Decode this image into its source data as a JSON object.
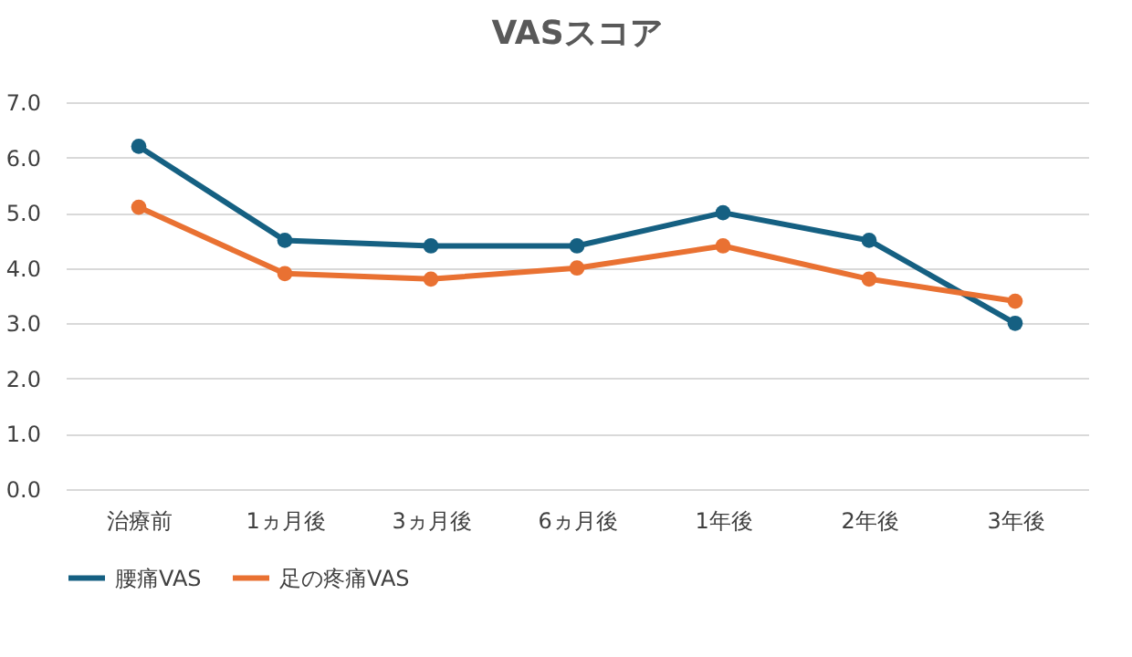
{
  "chart_data": {
    "type": "line",
    "title": "VASスコア",
    "categories": [
      "治療前",
      "1ヵ月後",
      "3ヵ月後",
      "6ヵ月後",
      "1年後",
      "2年後",
      "3年後"
    ],
    "series": [
      {
        "name": "腰痛VAS",
        "color": "#156082",
        "values": [
          6.2,
          4.5,
          4.4,
          4.4,
          5.0,
          4.5,
          3.0
        ]
      },
      {
        "name": "足の疼痛VAS",
        "color": "#e97132",
        "values": [
          5.1,
          3.9,
          3.8,
          4.0,
          4.4,
          3.8,
          3.4
        ]
      }
    ],
    "ylim": [
      0,
      7
    ],
    "yticks": [
      {
        "value": 0,
        "label": "0.0"
      },
      {
        "value": 1,
        "label": "1.0"
      },
      {
        "value": 2,
        "label": "2.0"
      },
      {
        "value": 3,
        "label": "3.0"
      },
      {
        "value": 4,
        "label": "4.0"
      },
      {
        "value": 5,
        "label": "5.0"
      },
      {
        "value": 6,
        "label": "6.0"
      },
      {
        "value": 7,
        "label": "7.0"
      }
    ],
    "grid": "y",
    "legend": "bottom",
    "marker": "circle",
    "line_style": "solid"
  }
}
